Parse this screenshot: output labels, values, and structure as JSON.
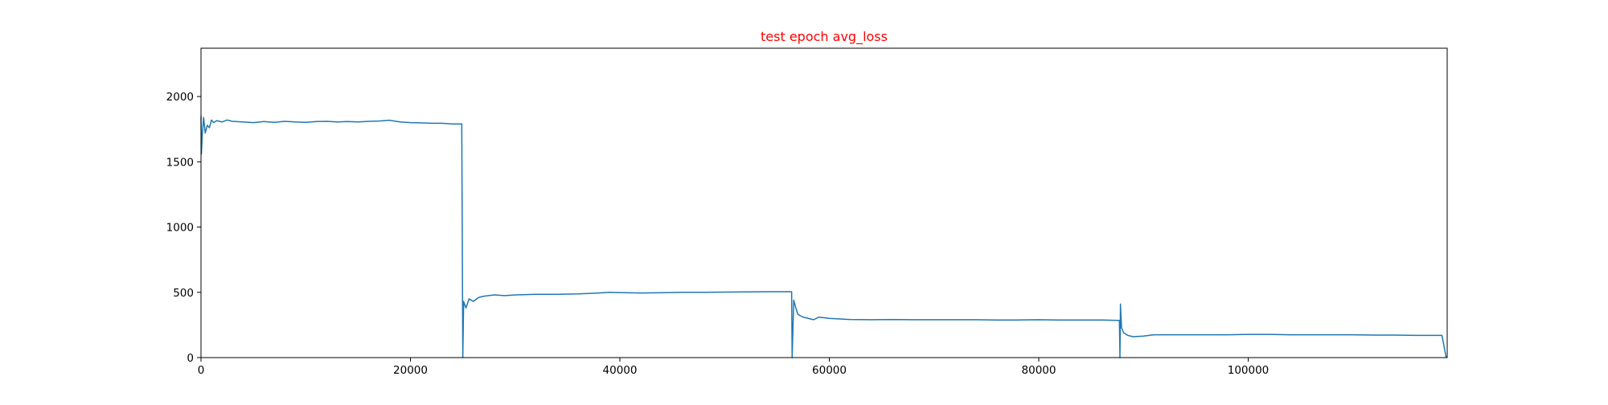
{
  "chart_data": {
    "type": "line",
    "title": "test epoch avg_loss",
    "title_color": "#ff0000",
    "xlabel": "",
    "ylabel": "",
    "xlim": [
      0,
      119000
    ],
    "ylim": [
      0,
      2370
    ],
    "grid": false,
    "line_color": "#1f77b4",
    "xticks": [
      0,
      20000,
      40000,
      60000,
      80000,
      100000
    ],
    "xtick_labels": [
      "0",
      "20000",
      "40000",
      "60000",
      "80000",
      "100000"
    ],
    "yticks": [
      0,
      500,
      1000,
      1500,
      2000
    ],
    "ytick_labels": [
      "0",
      "500",
      "1000",
      "1500",
      "2000"
    ],
    "series": [
      {
        "values": [
          [
            0,
            1850
          ],
          [
            40,
            1560
          ],
          [
            120,
            1700
          ],
          [
            250,
            1840
          ],
          [
            400,
            1720
          ],
          [
            600,
            1780
          ],
          [
            800,
            1760
          ],
          [
            1000,
            1820
          ],
          [
            1200,
            1800
          ],
          [
            1500,
            1815
          ],
          [
            2000,
            1805
          ],
          [
            2500,
            1820
          ],
          [
            3000,
            1810
          ],
          [
            4000,
            1805
          ],
          [
            5000,
            1800
          ],
          [
            6000,
            1808
          ],
          [
            7000,
            1802
          ],
          [
            8000,
            1810
          ],
          [
            9000,
            1805
          ],
          [
            10000,
            1802
          ],
          [
            11000,
            1808
          ],
          [
            12000,
            1810
          ],
          [
            13000,
            1805
          ],
          [
            14000,
            1808
          ],
          [
            15000,
            1805
          ],
          [
            16000,
            1810
          ],
          [
            17000,
            1812
          ],
          [
            18000,
            1818
          ],
          [
            19000,
            1805
          ],
          [
            20000,
            1800
          ],
          [
            21000,
            1798
          ],
          [
            22000,
            1795
          ],
          [
            23000,
            1795
          ],
          [
            24000,
            1790
          ],
          [
            24900,
            1790
          ],
          [
            25000,
            0
          ],
          [
            25080,
            430
          ],
          [
            25300,
            380
          ],
          [
            25600,
            450
          ],
          [
            26000,
            430
          ],
          [
            26500,
            460
          ],
          [
            27000,
            470
          ],
          [
            28000,
            480
          ],
          [
            29000,
            475
          ],
          [
            30000,
            480
          ],
          [
            32000,
            485
          ],
          [
            34000,
            485
          ],
          [
            36000,
            488
          ],
          [
            38000,
            495
          ],
          [
            39000,
            500
          ],
          [
            40000,
            498
          ],
          [
            42000,
            495
          ],
          [
            44000,
            497
          ],
          [
            46000,
            500
          ],
          [
            48000,
            500
          ],
          [
            50000,
            502
          ],
          [
            52000,
            503
          ],
          [
            54000,
            505
          ],
          [
            56000,
            505
          ],
          [
            56400,
            505
          ],
          [
            56450,
            0
          ],
          [
            56600,
            440
          ],
          [
            56800,
            380
          ],
          [
            57000,
            330
          ],
          [
            57500,
            310
          ],
          [
            58000,
            300
          ],
          [
            58500,
            290
          ],
          [
            59000,
            310
          ],
          [
            60000,
            300
          ],
          [
            62000,
            292
          ],
          [
            64000,
            290
          ],
          [
            66000,
            292
          ],
          [
            68000,
            290
          ],
          [
            70000,
            290
          ],
          [
            72000,
            290
          ],
          [
            74000,
            290
          ],
          [
            76000,
            288
          ],
          [
            78000,
            288
          ],
          [
            80000,
            290
          ],
          [
            82000,
            288
          ],
          [
            84000,
            288
          ],
          [
            86000,
            288
          ],
          [
            87700,
            285
          ],
          [
            87750,
            0
          ],
          [
            87800,
            410
          ],
          [
            87900,
            230
          ],
          [
            88100,
            190
          ],
          [
            88500,
            170
          ],
          [
            89000,
            160
          ],
          [
            90000,
            165
          ],
          [
            91000,
            175
          ],
          [
            92000,
            175
          ],
          [
            94000,
            175
          ],
          [
            96000,
            175
          ],
          [
            98000,
            175
          ],
          [
            100000,
            178
          ],
          [
            102000,
            178
          ],
          [
            104000,
            175
          ],
          [
            106000,
            175
          ],
          [
            108000,
            175
          ],
          [
            110000,
            175
          ],
          [
            112000,
            172
          ],
          [
            114000,
            172
          ],
          [
            116000,
            170
          ],
          [
            118500,
            170
          ],
          [
            118900,
            0
          ]
        ]
      }
    ]
  }
}
